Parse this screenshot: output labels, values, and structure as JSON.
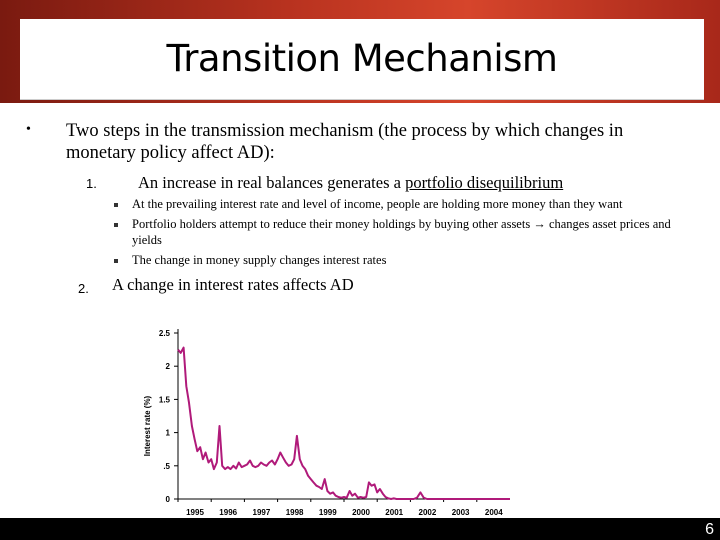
{
  "slide": {
    "title": "Transition Mechanism",
    "bullet_symbol": "•",
    "main_point": "Two steps in the transmission mechanism (the process by which changes in monetary policy affect AD):",
    "step1_number": "1.",
    "step1_prefix": "An increase in real balances generates a ",
    "step1_underlined": "portfolio disequilibrium",
    "sub_points": [
      "At the prevailing interest rate and level of income, people are holding more money than they want",
      "Portfolio holders attempt to reduce their money holdings by buying other assets → changes asset prices and yields",
      "The change in money supply changes interest rates"
    ],
    "step2_number": "2.",
    "step2_text": "A change in interest rates affects AD",
    "slide_number": "6"
  },
  "colors": {
    "background": "#b8321f",
    "line": "#b01a7a",
    "footer": "#000000"
  },
  "chart_data": {
    "type": "line",
    "ylabel": "Interest rate (%)",
    "xlabel": "",
    "ylim": [
      0,
      2.5
    ],
    "xlim": [
      1995,
      2005
    ],
    "y_ticks": [
      "0",
      ".5",
      "1",
      "1.5",
      "2",
      "2.5"
    ],
    "x_ticks": [
      "1995",
      "1996",
      "1997",
      "1998",
      "1999",
      "2000",
      "2001",
      "2002",
      "2003",
      "2004"
    ],
    "series": [
      {
        "values": [
          [
            1995.0,
            2.25
          ],
          [
            1995.08,
            2.2
          ],
          [
            1995.17,
            2.28
          ],
          [
            1995.25,
            1.7
          ],
          [
            1995.33,
            1.45
          ],
          [
            1995.42,
            1.1
          ],
          [
            1995.5,
            0.9
          ],
          [
            1995.58,
            0.72
          ],
          [
            1995.67,
            0.78
          ],
          [
            1995.75,
            0.6
          ],
          [
            1995.83,
            0.7
          ],
          [
            1995.92,
            0.55
          ],
          [
            1996.0,
            0.6
          ],
          [
            1996.08,
            0.45
          ],
          [
            1996.17,
            0.55
          ],
          [
            1996.25,
            1.1
          ],
          [
            1996.33,
            0.5
          ],
          [
            1996.42,
            0.45
          ],
          [
            1996.5,
            0.48
          ],
          [
            1996.58,
            0.45
          ],
          [
            1996.67,
            0.5
          ],
          [
            1996.75,
            0.46
          ],
          [
            1996.83,
            0.55
          ],
          [
            1996.92,
            0.48
          ],
          [
            1997.0,
            0.5
          ],
          [
            1997.08,
            0.52
          ],
          [
            1997.17,
            0.58
          ],
          [
            1997.25,
            0.5
          ],
          [
            1997.33,
            0.48
          ],
          [
            1997.42,
            0.5
          ],
          [
            1997.5,
            0.55
          ],
          [
            1997.58,
            0.52
          ],
          [
            1997.67,
            0.5
          ],
          [
            1997.75,
            0.55
          ],
          [
            1997.83,
            0.58
          ],
          [
            1997.92,
            0.52
          ],
          [
            1998.0,
            0.6
          ],
          [
            1998.08,
            0.7
          ],
          [
            1998.17,
            0.62
          ],
          [
            1998.25,
            0.55
          ],
          [
            1998.33,
            0.5
          ],
          [
            1998.42,
            0.52
          ],
          [
            1998.5,
            0.6
          ],
          [
            1998.58,
            0.95
          ],
          [
            1998.67,
            0.6
          ],
          [
            1998.75,
            0.5
          ],
          [
            1998.83,
            0.45
          ],
          [
            1998.92,
            0.35
          ],
          [
            1999.0,
            0.3
          ],
          [
            1999.08,
            0.25
          ],
          [
            1999.17,
            0.2
          ],
          [
            1999.25,
            0.18
          ],
          [
            1999.33,
            0.15
          ],
          [
            1999.42,
            0.3
          ],
          [
            1999.5,
            0.12
          ],
          [
            1999.58,
            0.08
          ],
          [
            1999.67,
            0.1
          ],
          [
            1999.75,
            0.05
          ],
          [
            1999.83,
            0.03
          ],
          [
            1999.92,
            0.02
          ],
          [
            2000.0,
            0.03
          ],
          [
            2000.08,
            0.02
          ],
          [
            2000.17,
            0.12
          ],
          [
            2000.25,
            0.05
          ],
          [
            2000.33,
            0.08
          ],
          [
            2000.42,
            0.02
          ],
          [
            2000.5,
            0.03
          ],
          [
            2000.58,
            0.02
          ],
          [
            2000.67,
            0.03
          ],
          [
            2000.75,
            0.25
          ],
          [
            2000.83,
            0.2
          ],
          [
            2000.92,
            0.22
          ],
          [
            2001.0,
            0.1
          ],
          [
            2001.08,
            0.15
          ],
          [
            2001.17,
            0.08
          ],
          [
            2001.25,
            0.03
          ],
          [
            2001.33,
            0.01
          ],
          [
            2001.42,
            0.0
          ],
          [
            2001.5,
            0.01
          ],
          [
            2001.58,
            0.0
          ],
          [
            2001.67,
            0.0
          ],
          [
            2001.75,
            0.0
          ],
          [
            2001.83,
            0.0
          ],
          [
            2001.92,
            0.0
          ],
          [
            2002.0,
            0.0
          ],
          [
            2002.1,
            0.0
          ],
          [
            2002.2,
            0.02
          ],
          [
            2002.3,
            0.1
          ],
          [
            2002.4,
            0.02
          ],
          [
            2002.5,
            0.0
          ],
          [
            2003.0,
            0.0
          ],
          [
            2003.5,
            0.0
          ],
          [
            2004.0,
            0.0
          ],
          [
            2004.5,
            0.0
          ],
          [
            2005.0,
            0.0
          ]
        ]
      }
    ],
    "grid": false
  }
}
